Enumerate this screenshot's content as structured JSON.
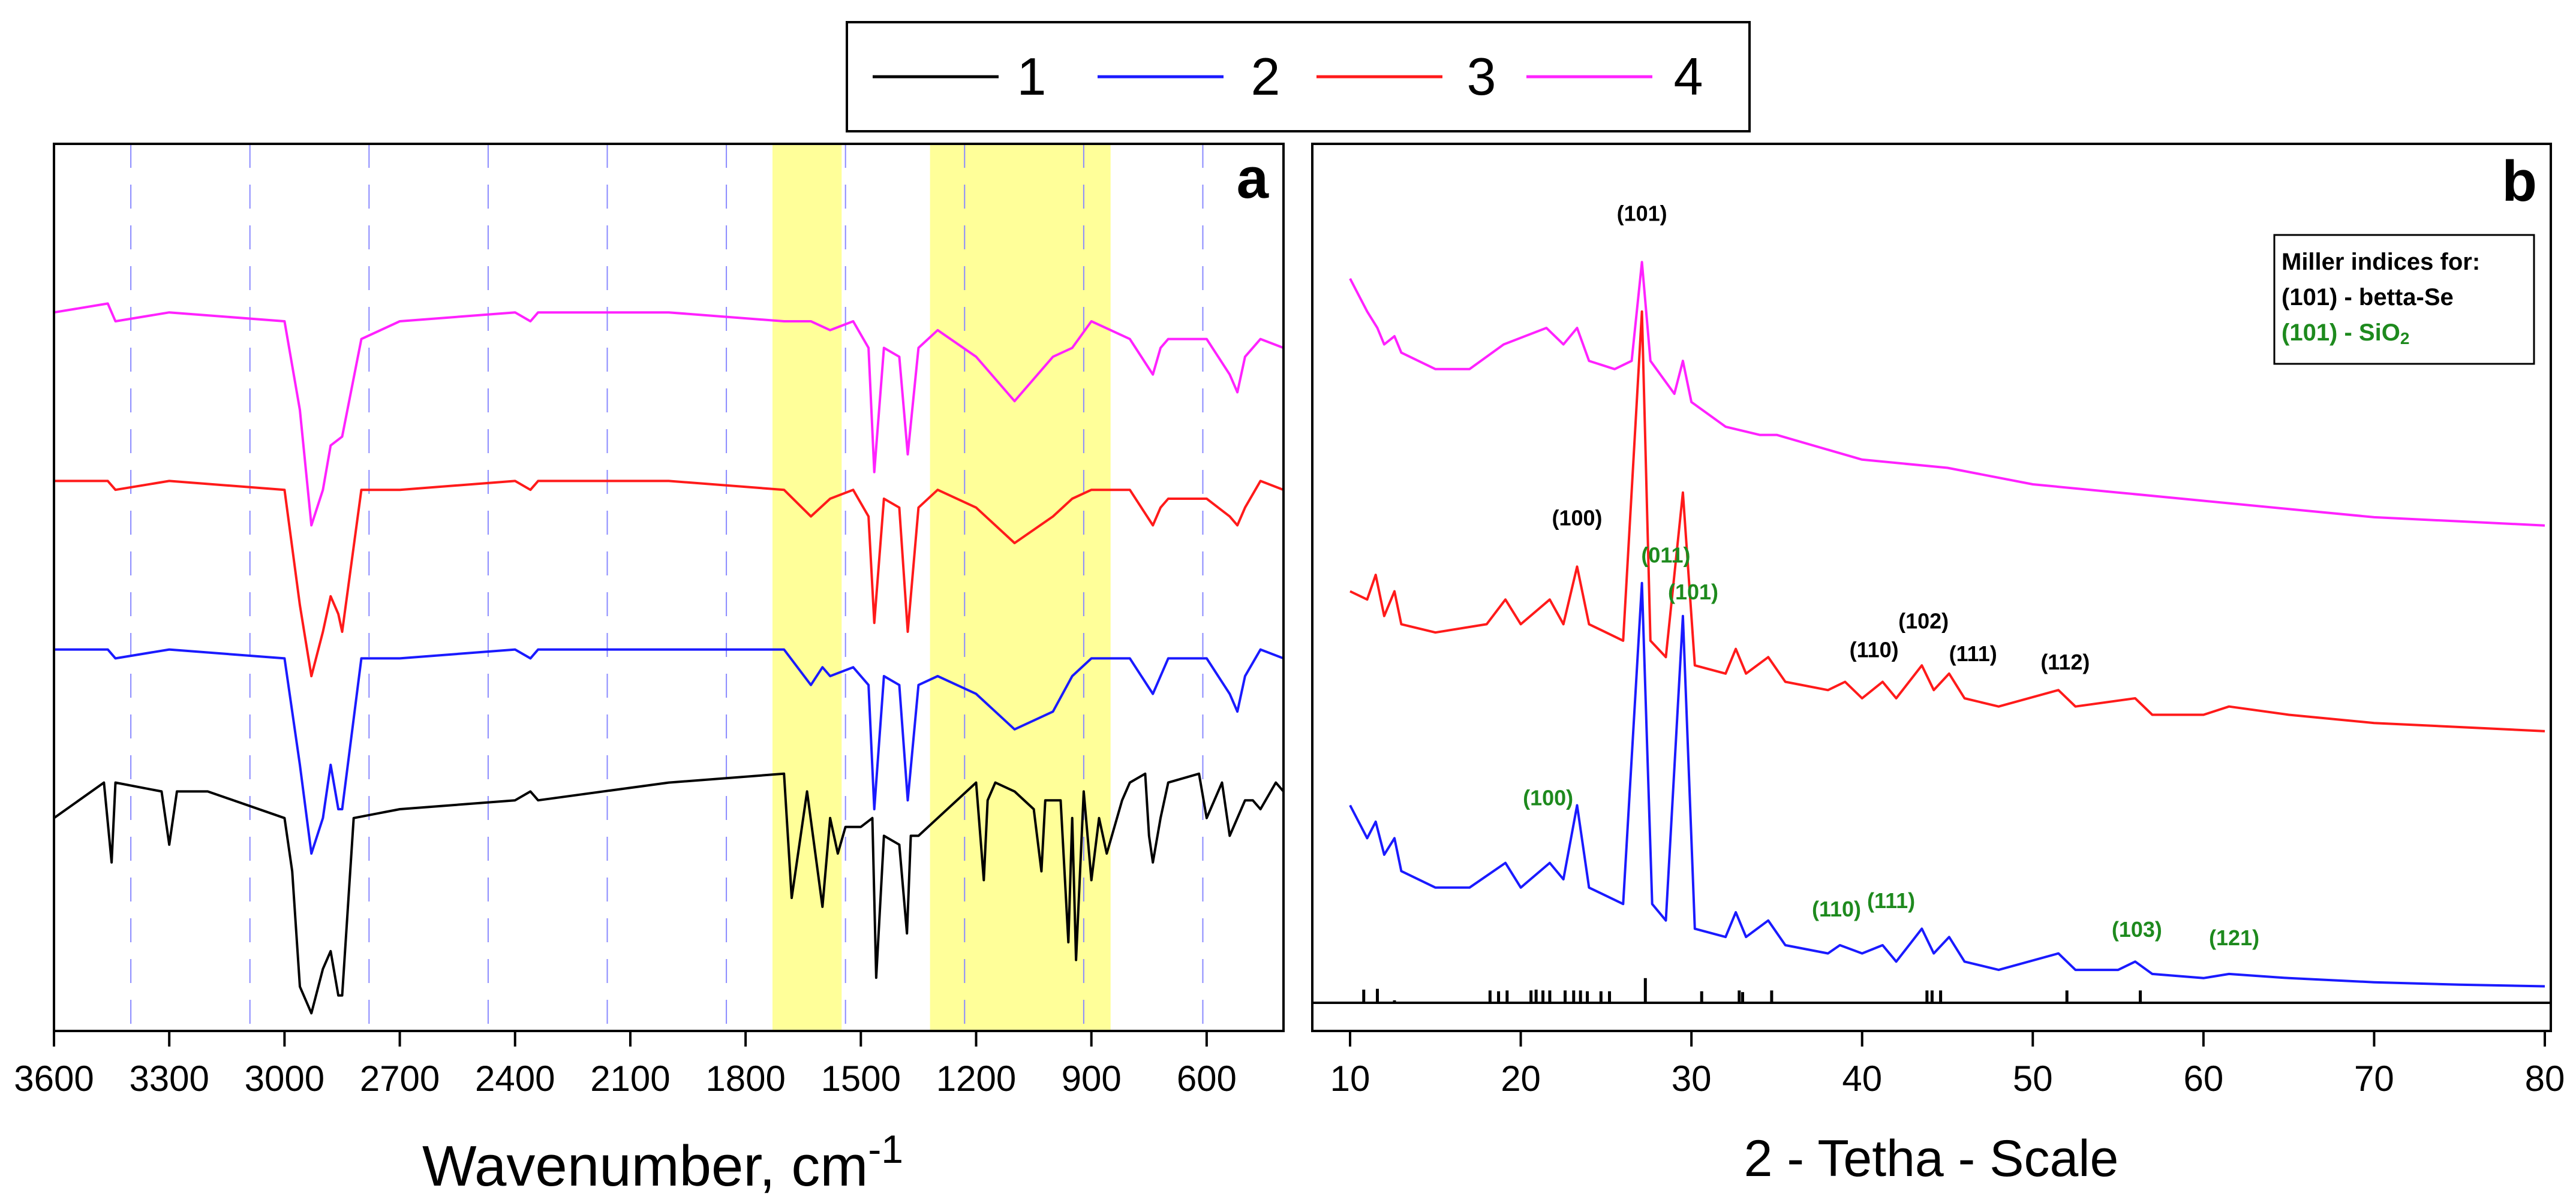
{
  "legend": {
    "items": [
      {
        "label": "1",
        "color": "#000000"
      },
      {
        "label": "2",
        "color": "#1a1aff"
      },
      {
        "label": "3",
        "color": "#ff1a1a"
      },
      {
        "label": "4",
        "color": "#ff22ff"
      }
    ]
  },
  "chart_data": [
    {
      "panel": "a",
      "type": "line",
      "title": "",
      "xlabel": "Wavenumber, cm",
      "xlabel_superscript": "-1",
      "ylabel": "",
      "xlim": [
        3600,
        400
      ],
      "reversed_x": true,
      "ylim": [
        0,
        100
      ],
      "x_ticks": [
        3600,
        3300,
        3000,
        2700,
        2400,
        2100,
        1800,
        1500,
        1200,
        900,
        600
      ],
      "x_tick_labels": [
        "3600",
        "3300",
        "3000",
        "2700",
        "2400",
        "2100",
        "1800",
        "1500",
        "1200",
        "900",
        "600"
      ],
      "dashed_gridlines_x": [
        3400,
        3090,
        2780,
        2470,
        2160,
        1850,
        1540,
        1230,
        920,
        610
      ],
      "highlight_bands": [
        [
          1730,
          1550
        ],
        [
          1320,
          850
        ]
      ],
      "highlight_color": "#ffff99",
      "series": [
        {
          "name": "4",
          "color": "#ff22ff",
          "x": [
            3600,
            3460,
            3440,
            3300,
            3000,
            2960,
            2930,
            2900,
            2880,
            2850,
            2800,
            2700,
            2400,
            2360,
            2340,
            2000,
            1700,
            1630,
            1580,
            1520,
            1480,
            1465,
            1440,
            1400,
            1378,
            1350,
            1300,
            1200,
            1100,
            1000,
            950,
            900,
            800,
            740,
            720,
            700,
            600,
            540,
            520,
            500,
            460,
            400
          ],
          "y": [
            81,
            82,
            80,
            81,
            80,
            70,
            57,
            61,
            66,
            67,
            78,
            80,
            81,
            80,
            81,
            81,
            80,
            80,
            79,
            80,
            77,
            63,
            77,
            76,
            65,
            77,
            79,
            76,
            71,
            76,
            77,
            80,
            78,
            74,
            77,
            78,
            78,
            74,
            72,
            76,
            78,
            77
          ]
        },
        {
          "name": "3",
          "color": "#ff1a1a",
          "x": [
            3600,
            3460,
            3440,
            3300,
            3000,
            2960,
            2930,
            2900,
            2880,
            2860,
            2850,
            2800,
            2700,
            2400,
            2360,
            2340,
            2000,
            1700,
            1630,
            1580,
            1520,
            1480,
            1465,
            1440,
            1400,
            1378,
            1350,
            1300,
            1200,
            1100,
            1000,
            950,
            900,
            800,
            740,
            720,
            700,
            600,
            540,
            520,
            500,
            460,
            400
          ],
          "y": [
            62,
            62,
            61,
            62,
            61,
            48,
            40,
            45,
            49,
            47,
            45,
            61,
            61,
            62,
            61,
            62,
            62,
            61,
            58,
            60,
            61,
            58,
            46,
            60,
            59,
            45,
            59,
            61,
            59,
            55,
            58,
            60,
            61,
            61,
            57,
            59,
            60,
            60,
            58,
            57,
            59,
            62,
            61
          ]
        },
        {
          "name": "2",
          "color": "#1a1aff",
          "x": [
            3600,
            3460,
            3440,
            3300,
            3000,
            2960,
            2930,
            2900,
            2880,
            2860,
            2850,
            2800,
            2700,
            2400,
            2360,
            2340,
            2000,
            1700,
            1630,
            1600,
            1580,
            1520,
            1480,
            1465,
            1440,
            1400,
            1378,
            1350,
            1300,
            1200,
            1100,
            1000,
            950,
            900,
            800,
            740,
            720,
            700,
            600,
            540,
            520,
            500,
            460,
            400
          ],
          "y": [
            43,
            43,
            42,
            43,
            42,
            30,
            20,
            24,
            30,
            25,
            25,
            42,
            42,
            43,
            42,
            43,
            43,
            43,
            39,
            41,
            40,
            41,
            39,
            25,
            40,
            39,
            26,
            39,
            40,
            38,
            34,
            36,
            40,
            42,
            42,
            38,
            40,
            42,
            42,
            38,
            36,
            40,
            43,
            42
          ]
        },
        {
          "name": "1",
          "color": "#000000",
          "x": [
            3600,
            3470,
            3450,
            3440,
            3320,
            3300,
            3280,
            3200,
            3000,
            2980,
            2960,
            2930,
            2900,
            2880,
            2860,
            2850,
            2820,
            2700,
            2400,
            2360,
            2340,
            2000,
            1700,
            1680,
            1660,
            1640,
            1600,
            1580,
            1560,
            1540,
            1500,
            1470,
            1460,
            1440,
            1400,
            1380,
            1370,
            1350,
            1300,
            1200,
            1180,
            1170,
            1150,
            1100,
            1050,
            1030,
            1020,
            980,
            960,
            950,
            940,
            920,
            900,
            880,
            860,
            820,
            800,
            760,
            750,
            740,
            720,
            700,
            620,
            600,
            580,
            560,
            540,
            520,
            500,
            480,
            460,
            420,
            400
          ],
          "y": [
            24,
            28,
            19,
            28,
            27,
            21,
            27,
            27,
            24,
            18,
            5,
            2,
            7,
            9,
            4,
            4,
            24,
            25,
            26,
            27,
            26,
            28,
            29,
            15,
            21,
            27,
            14,
            24,
            20,
            23,
            23,
            24,
            6,
            22,
            21,
            11,
            22,
            22,
            24,
            28,
            17,
            26,
            28,
            27,
            25,
            18,
            26,
            26,
            10,
            24,
            8,
            27,
            17,
            24,
            20,
            26,
            28,
            29,
            22,
            19,
            24,
            28,
            29,
            24,
            26,
            28,
            22,
            24,
            26,
            26,
            25,
            28,
            27
          ]
        }
      ],
      "panel_label": "a"
    },
    {
      "panel": "b",
      "type": "line",
      "title": "",
      "xlabel": "2 - Tetha - Scale",
      "ylabel": "",
      "xlim": [
        5,
        80
      ],
      "ylim": [
        0,
        100
      ],
      "x_ticks": [
        10,
        20,
        30,
        40,
        50,
        60,
        70,
        80
      ],
      "x_tick_labels": [
        "10",
        "20",
        "30",
        "40",
        "50",
        "60",
        "70",
        "80"
      ],
      "series": [
        {
          "name": "4",
          "color": "#ff22ff",
          "x": [
            10,
            11,
            11.6,
            12,
            12.6,
            13,
            15,
            17,
            19,
            21.5,
            22.5,
            23.3,
            24,
            25.5,
            26.5,
            27.1,
            27.6,
            29,
            29.5,
            30,
            32,
            34,
            35,
            40,
            45,
            50,
            55,
            60,
            65,
            70,
            75,
            80
          ],
          "y": [
            88,
            84,
            82,
            80,
            81,
            79,
            77,
            77,
            80,
            82,
            80,
            82,
            78,
            77,
            78,
            90,
            78,
            74,
            78,
            73,
            70,
            69,
            69,
            66,
            65,
            63,
            62,
            61,
            60,
            59,
            58.5,
            58
          ]
        },
        {
          "name": "3",
          "color": "#ff1a1a",
          "x": [
            10,
            11,
            11.5,
            12,
            12.6,
            13,
            15,
            18,
            19.1,
            20,
            21.7,
            22.5,
            23.3,
            24,
            26,
            27.1,
            27.6,
            28.5,
            29.5,
            30.2,
            32,
            32.6,
            33.2,
            34.5,
            35.5,
            38,
            39,
            40,
            41.2,
            42,
            43.5,
            44.2,
            45.1,
            46,
            48,
            51.5,
            52.5,
            56,
            57,
            60,
            61.5,
            65,
            70,
            75,
            80
          ],
          "y": [
            50,
            49,
            52,
            47,
            50,
            46,
            45,
            46,
            49,
            46,
            49,
            46,
            53,
            46,
            44,
            84,
            44,
            42,
            62,
            41,
            40,
            43,
            40,
            42,
            39,
            38,
            39,
            37,
            39,
            37,
            41,
            38,
            40,
            37,
            36,
            38,
            36,
            37,
            35,
            35,
            36,
            35,
            34,
            33.5,
            33
          ]
        },
        {
          "name": "2",
          "color": "#1a1aff",
          "x": [
            10,
            11,
            11.5,
            12,
            12.6,
            13,
            15,
            17,
            19.1,
            20,
            21.7,
            22.5,
            23.3,
            24,
            26,
            27.1,
            27.7,
            28.5,
            29.5,
            30.2,
            32,
            32.6,
            33.2,
            34.5,
            35.5,
            38,
            38.7,
            40,
            41.2,
            42,
            43.5,
            44.2,
            45.1,
            46,
            48,
            51.5,
            52.5,
            55,
            56,
            57,
            60,
            61.5,
            65,
            70,
            75,
            80
          ],
          "y": [
            24,
            20,
            22,
            18,
            20,
            16,
            14,
            14,
            17,
            14,
            17,
            15,
            24,
            14,
            12,
            51,
            12,
            10,
            47,
            9,
            8,
            11,
            8,
            10,
            7,
            6,
            7,
            6,
            7,
            5,
            9,
            6,
            8,
            5,
            4,
            6,
            4,
            4,
            5,
            3.5,
            3,
            3.5,
            3,
            2.5,
            2.2,
            2
          ]
        },
        {
          "name": "1",
          "color": "#000000",
          "style": "stick",
          "x": [
            10.8,
            11.6,
            12.6,
            18.2,
            18.7,
            19.2,
            20.6,
            20.9,
            21.3,
            21.7,
            22.6,
            23.1,
            23.5,
            23.9,
            24.7,
            25.2,
            27.3,
            30.6,
            32.8,
            33.0,
            34.7,
            43.8,
            44.1,
            44.6,
            52.0,
            56.3
          ],
          "y": [
            1.6,
            1.7,
            0.3,
            1.5,
            1.4,
            1.5,
            1.5,
            1.6,
            1.5,
            1.5,
            1.5,
            1.5,
            1.5,
            1.4,
            1.4,
            1.4,
            3.0,
            1.4,
            1.5,
            1.3,
            1.5,
            1.5,
            1.5,
            1.5,
            1.5,
            1.5
          ],
          "baseline": 0
        }
      ],
      "annotations_black": [
        {
          "text": "(101)",
          "x": 27.1,
          "y": 95
        },
        {
          "text": "(100)",
          "x": 23.3,
          "y": 58
        },
        {
          "text": "(110)",
          "x": 40.7,
          "y": 42
        },
        {
          "text": "(102)",
          "x": 43.6,
          "y": 45.5
        },
        {
          "text": "(111)",
          "x": 46.5,
          "y": 41.5
        },
        {
          "text": "(112)",
          "x": 51.9,
          "y": 40.5
        }
      ],
      "annotations_green": [
        {
          "text": "(011)",
          "x": 28.5,
          "y": 53.5
        },
        {
          "text": "(101)",
          "x": 30.1,
          "y": 49
        },
        {
          "text": "(100)",
          "x": 21.6,
          "y": 24
        },
        {
          "text": "(110)",
          "x": 38.5,
          "y": 10.5
        },
        {
          "text": "(111)",
          "x": 41.7,
          "y": 11.5
        },
        {
          "text": "(103)",
          "x": 56.1,
          "y": 8
        },
        {
          "text": "(121)",
          "x": 61.8,
          "y": 7
        }
      ],
      "miller_box": {
        "title": "Miller indices for:",
        "line1": "(101) -  betta-Se",
        "line2_main": "(101) - SiO",
        "line2_sub": "2"
      },
      "panel_label": "b"
    }
  ]
}
